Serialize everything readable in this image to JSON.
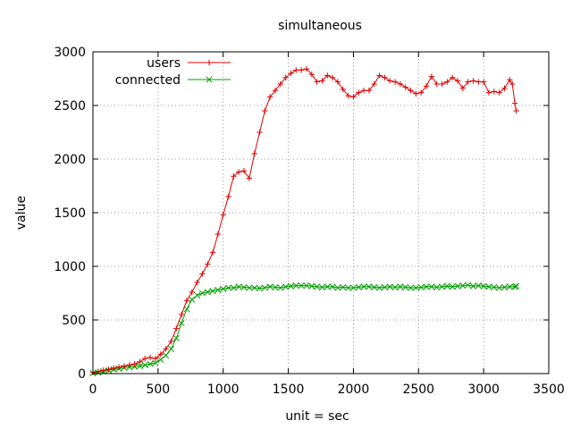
{
  "chart_data": {
    "type": "line",
    "title": "simultaneous",
    "xlabel": "unit = sec",
    "ylabel": "value",
    "xlim": [
      0,
      3500
    ],
    "ylim": [
      0,
      3000
    ],
    "xticks": [
      0,
      500,
      1000,
      1500,
      2000,
      2500,
      3000,
      3500
    ],
    "yticks": [
      0,
      500,
      1000,
      1500,
      2000,
      2500,
      3000
    ],
    "grid": true,
    "legend_position": "top-left",
    "series": [
      {
        "name": "users",
        "color": "#e00000",
        "marker": "plus",
        "points": [
          [
            0,
            10
          ],
          [
            40,
            20
          ],
          [
            80,
            30
          ],
          [
            120,
            40
          ],
          [
            160,
            50
          ],
          [
            200,
            60
          ],
          [
            240,
            70
          ],
          [
            280,
            80
          ],
          [
            320,
            90
          ],
          [
            360,
            110
          ],
          [
            400,
            140
          ],
          [
            440,
            150
          ],
          [
            480,
            140
          ],
          [
            520,
            180
          ],
          [
            560,
            230
          ],
          [
            600,
            300
          ],
          [
            640,
            420
          ],
          [
            680,
            550
          ],
          [
            720,
            680
          ],
          [
            760,
            760
          ],
          [
            800,
            850
          ],
          [
            840,
            930
          ],
          [
            880,
            1020
          ],
          [
            920,
            1130
          ],
          [
            960,
            1300
          ],
          [
            1000,
            1480
          ],
          [
            1040,
            1650
          ],
          [
            1080,
            1840
          ],
          [
            1120,
            1880
          ],
          [
            1160,
            1890
          ],
          [
            1200,
            1820
          ],
          [
            1240,
            2050
          ],
          [
            1280,
            2250
          ],
          [
            1320,
            2450
          ],
          [
            1360,
            2580
          ],
          [
            1400,
            2640
          ],
          [
            1440,
            2700
          ],
          [
            1480,
            2760
          ],
          [
            1520,
            2800
          ],
          [
            1560,
            2830
          ],
          [
            1600,
            2830
          ],
          [
            1640,
            2840
          ],
          [
            1680,
            2790
          ],
          [
            1720,
            2720
          ],
          [
            1760,
            2730
          ],
          [
            1800,
            2780
          ],
          [
            1840,
            2760
          ],
          [
            1880,
            2720
          ],
          [
            1920,
            2650
          ],
          [
            1960,
            2590
          ],
          [
            2000,
            2580
          ],
          [
            2040,
            2620
          ],
          [
            2080,
            2640
          ],
          [
            2120,
            2640
          ],
          [
            2160,
            2700
          ],
          [
            2200,
            2780
          ],
          [
            2240,
            2760
          ],
          [
            2280,
            2730
          ],
          [
            2320,
            2720
          ],
          [
            2360,
            2700
          ],
          [
            2400,
            2670
          ],
          [
            2440,
            2640
          ],
          [
            2480,
            2610
          ],
          [
            2520,
            2620
          ],
          [
            2560,
            2680
          ],
          [
            2600,
            2770
          ],
          [
            2640,
            2700
          ],
          [
            2680,
            2700
          ],
          [
            2720,
            2720
          ],
          [
            2760,
            2760
          ],
          [
            2800,
            2730
          ],
          [
            2840,
            2660
          ],
          [
            2880,
            2720
          ],
          [
            2920,
            2730
          ],
          [
            2960,
            2720
          ],
          [
            3000,
            2720
          ],
          [
            3040,
            2620
          ],
          [
            3080,
            2630
          ],
          [
            3120,
            2620
          ],
          [
            3160,
            2660
          ],
          [
            3200,
            2740
          ],
          [
            3220,
            2700
          ],
          [
            3240,
            2520
          ],
          [
            3250,
            2450
          ]
        ]
      },
      {
        "name": "connected",
        "color": "#00a000",
        "marker": "x",
        "points": [
          [
            0,
            5
          ],
          [
            40,
            10
          ],
          [
            80,
            20
          ],
          [
            120,
            30
          ],
          [
            160,
            40
          ],
          [
            200,
            45
          ],
          [
            240,
            55
          ],
          [
            280,
            60
          ],
          [
            320,
            65
          ],
          [
            360,
            70
          ],
          [
            400,
            80
          ],
          [
            440,
            90
          ],
          [
            480,
            100
          ],
          [
            520,
            130
          ],
          [
            560,
            170
          ],
          [
            600,
            230
          ],
          [
            640,
            330
          ],
          [
            680,
            470
          ],
          [
            720,
            600
          ],
          [
            760,
            690
          ],
          [
            800,
            730
          ],
          [
            840,
            750
          ],
          [
            880,
            760
          ],
          [
            920,
            770
          ],
          [
            960,
            780
          ],
          [
            1000,
            790
          ],
          [
            1040,
            800
          ],
          [
            1080,
            800
          ],
          [
            1120,
            810
          ],
          [
            1160,
            805
          ],
          [
            1200,
            800
          ],
          [
            1240,
            800
          ],
          [
            1280,
            795
          ],
          [
            1320,
            800
          ],
          [
            1360,
            810
          ],
          [
            1400,
            805
          ],
          [
            1440,
            800
          ],
          [
            1480,
            810
          ],
          [
            1520,
            815
          ],
          [
            1560,
            820
          ],
          [
            1600,
            820
          ],
          [
            1640,
            820
          ],
          [
            1680,
            815
          ],
          [
            1720,
            810
          ],
          [
            1760,
            805
          ],
          [
            1800,
            810
          ],
          [
            1840,
            810
          ],
          [
            1880,
            800
          ],
          [
            1920,
            805
          ],
          [
            1960,
            800
          ],
          [
            2000,
            800
          ],
          [
            2040,
            805
          ],
          [
            2080,
            810
          ],
          [
            2120,
            810
          ],
          [
            2160,
            805
          ],
          [
            2200,
            800
          ],
          [
            2240,
            805
          ],
          [
            2280,
            810
          ],
          [
            2320,
            805
          ],
          [
            2360,
            810
          ],
          [
            2400,
            805
          ],
          [
            2440,
            800
          ],
          [
            2480,
            800
          ],
          [
            2520,
            805
          ],
          [
            2560,
            810
          ],
          [
            2600,
            810
          ],
          [
            2640,
            805
          ],
          [
            2680,
            810
          ],
          [
            2720,
            815
          ],
          [
            2760,
            810
          ],
          [
            2800,
            815
          ],
          [
            2840,
            820
          ],
          [
            2880,
            825
          ],
          [
            2920,
            815
          ],
          [
            2960,
            820
          ],
          [
            3000,
            815
          ],
          [
            3040,
            810
          ],
          [
            3080,
            805
          ],
          [
            3120,
            800
          ],
          [
            3160,
            805
          ],
          [
            3200,
            810
          ],
          [
            3240,
            810
          ],
          [
            3250,
            815
          ]
        ]
      }
    ]
  }
}
